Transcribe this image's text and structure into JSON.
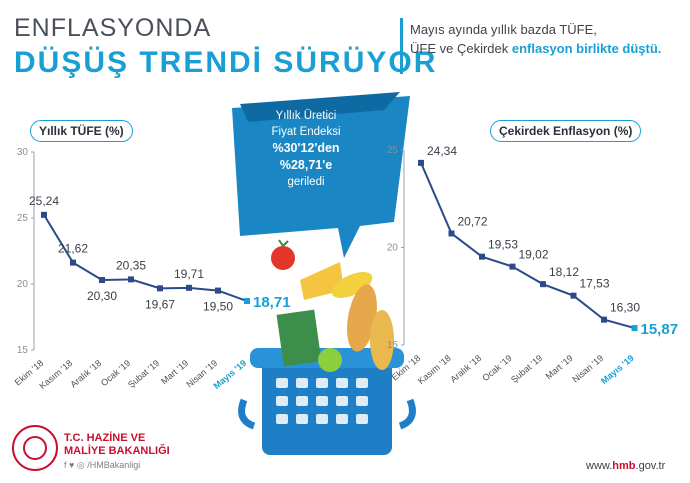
{
  "header": {
    "title_line1": "ENFLASYONDA",
    "title_line2": "DÜŞÜŞ TRENDİ SÜRÜYOR",
    "note_part1": "Mayıs ayında yıllık bazda TÜFE,",
    "note_part2": "ÜFE ve Çekirdek ",
    "note_highlight": "enflasyon birlikte düştü."
  },
  "callout": {
    "line1": "Yıllık Üretici",
    "line2": "Fiyat Endeksi",
    "line3": "%30'12'den",
    "line4": "%28,71'e",
    "line5": "geriledi"
  },
  "footer": {
    "org_line1": "T.C. HAZİNE VE",
    "org_line2": "MALİYE BAKANLIĞI",
    "social": "f ♥ ◎ /HMBakanligi",
    "url_prefix": "www.",
    "url_brand": "hmb",
    "url_suffix": ".gov.tr"
  },
  "colors": {
    "accent": "#1a9fd4",
    "line": "#2b4a8a",
    "brand_red": "#c8102e"
  },
  "icons": [
    "basket-icon",
    "food-illustration",
    "ministry-logo-icon",
    "social-icons"
  ],
  "chart_data": [
    {
      "type": "line",
      "title": "Yıllık TÜFE (%)",
      "categories": [
        "Ekim '18",
        "Kasım '18",
        "Aralık '18",
        "Ocak '19",
        "Şubat '19",
        "Mart '19",
        "Nisan '19",
        "Mayıs '19"
      ],
      "values": [
        25.24,
        21.62,
        20.3,
        20.35,
        19.67,
        19.71,
        19.5,
        18.71
      ],
      "labels": [
        "25,24",
        "21,62",
        "20,30",
        "20,35",
        "19,67",
        "19,71",
        "19,50",
        "18,71"
      ],
      "label_pos": [
        "above",
        "above",
        "below",
        "above",
        "below",
        "above",
        "below",
        "right"
      ],
      "ylim": [
        15,
        30
      ],
      "yticks": [
        15,
        20,
        25,
        30
      ],
      "grid": false
    },
    {
      "type": "line",
      "title": "Çekirdek Enflasyon (%)",
      "categories": [
        "Ekim '18",
        "Kasım '18",
        "Aralık '18",
        "Ocak '19",
        "Şubat '19",
        "Mart '19",
        "Nisan '19",
        "Mayıs '19"
      ],
      "values": [
        24.34,
        20.72,
        19.53,
        19.02,
        18.12,
        17.53,
        16.3,
        15.87
      ],
      "labels": [
        "24,34",
        "20,72",
        "19,53",
        "19,02",
        "18,12",
        "17,53",
        "16,30",
        "15,87"
      ],
      "label_pos": [
        "right",
        "right",
        "right",
        "right",
        "right",
        "right",
        "right",
        "right"
      ],
      "ylim": [
        15,
        25
      ],
      "yticks": [
        15,
        20,
        25
      ],
      "grid": false
    }
  ]
}
